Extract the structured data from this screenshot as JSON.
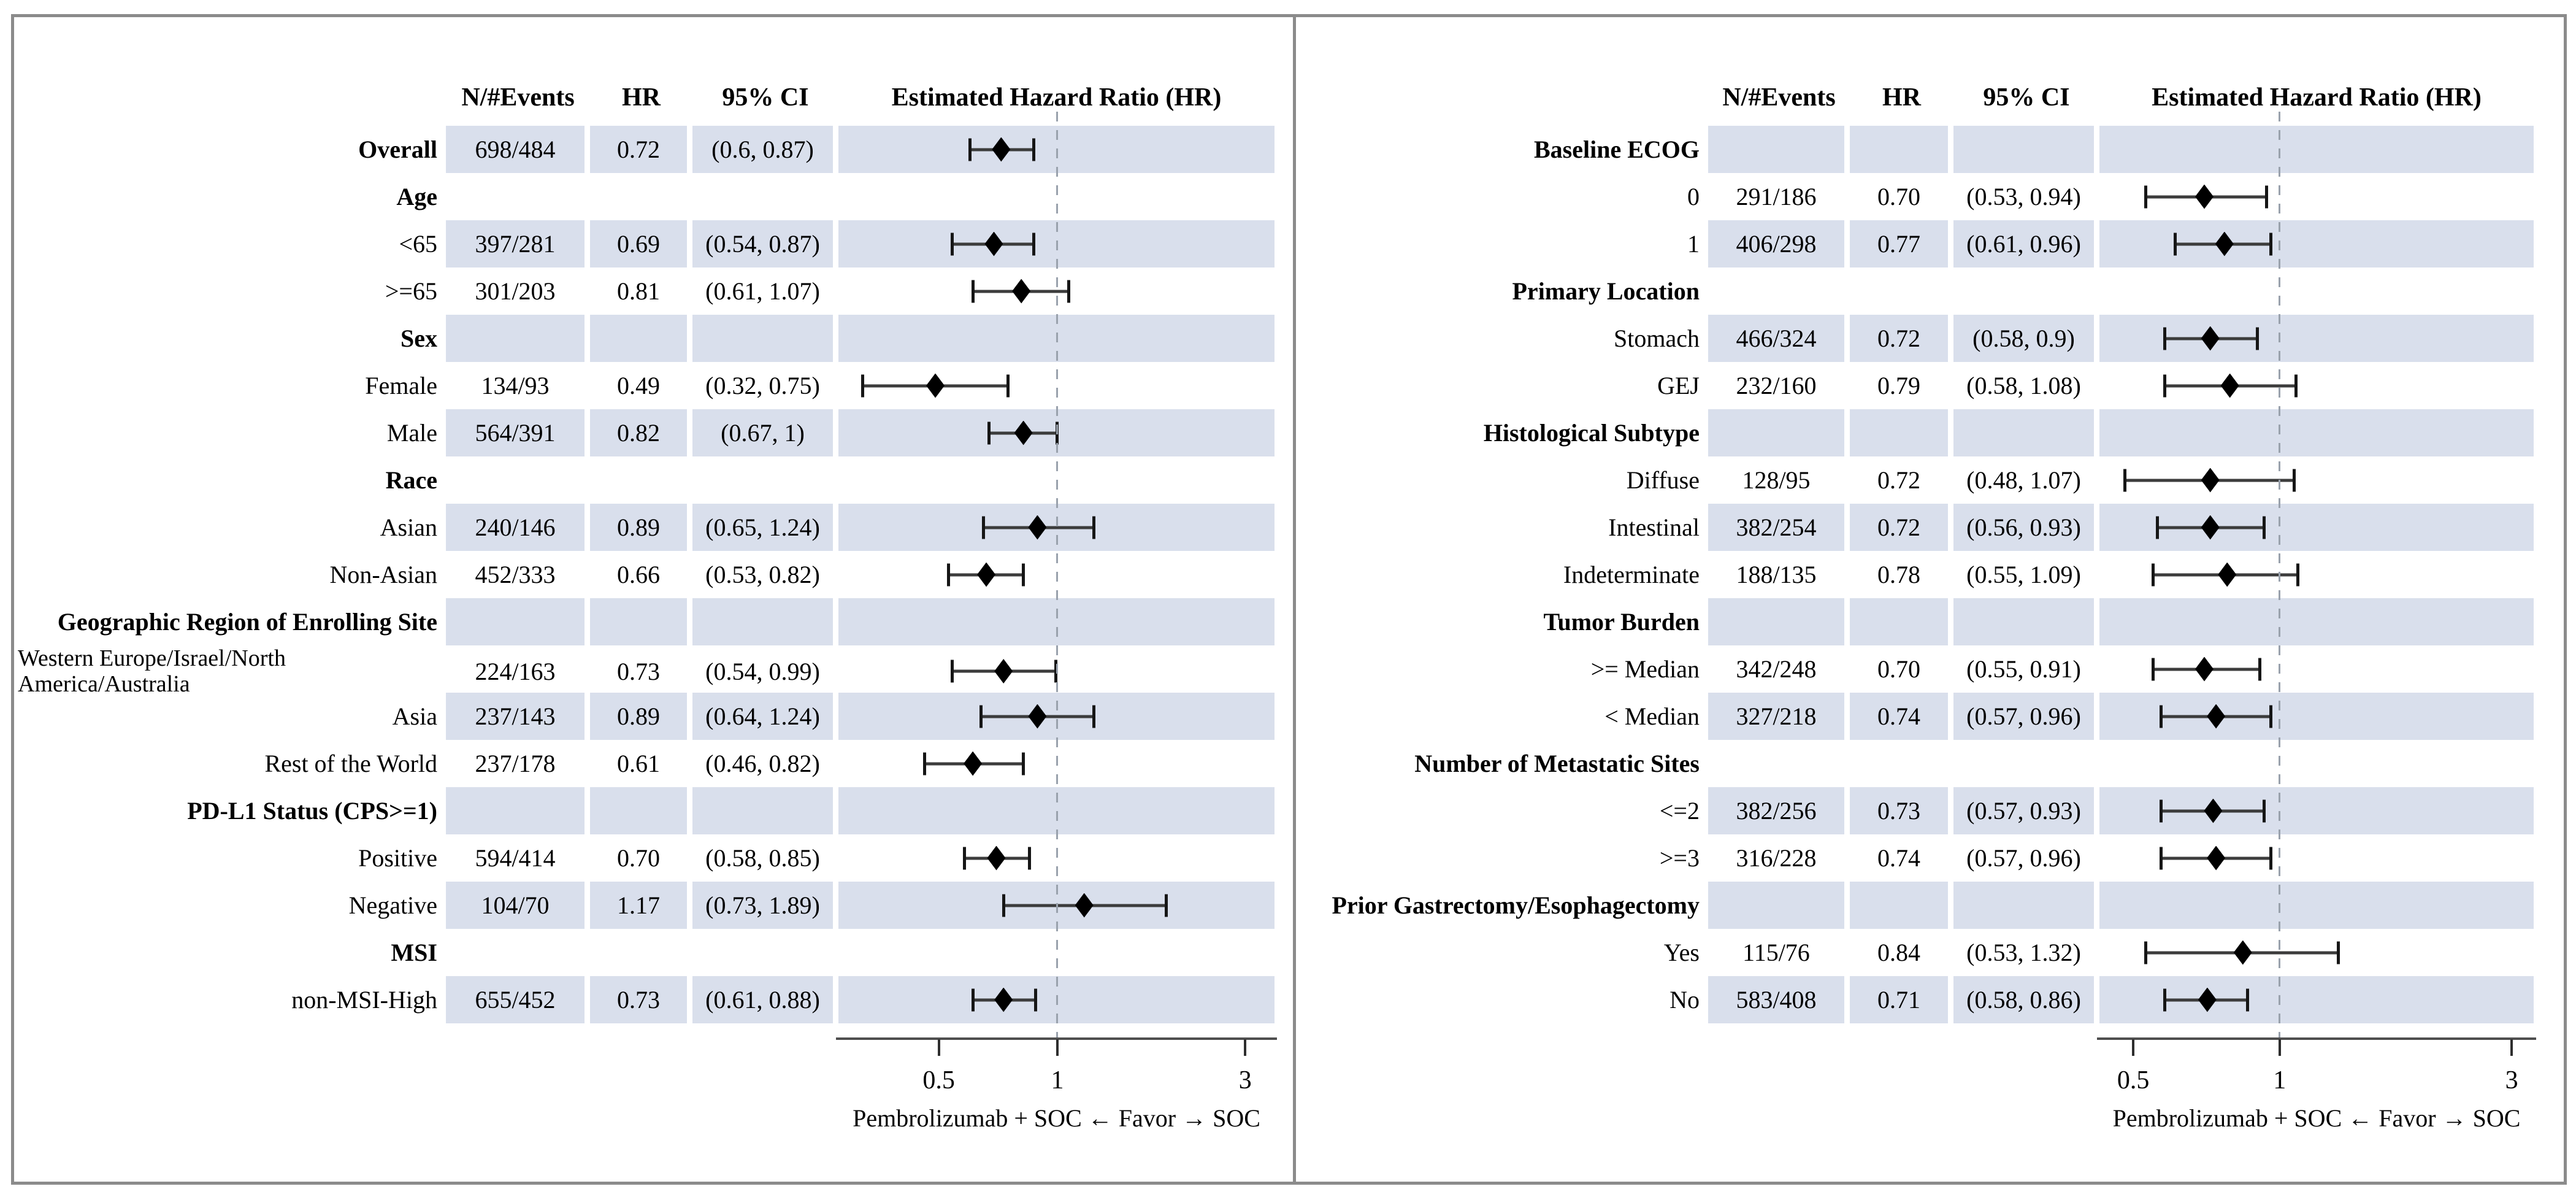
{
  "styles": {
    "band_color": "#d9dfec",
    "border_color": "#8b8b8b",
    "dash_color": "#9aa2ad",
    "marker_color": "#000000",
    "text_color": "#000000"
  },
  "chart_data": [
    {
      "type": "forest",
      "panel": "left",
      "columns": {
        "events": "N/#Events",
        "hr": "HR",
        "ci": "95% CI",
        "plot": "Estimated Hazard Ratio (HR)"
      },
      "axis": {
        "scale": "log",
        "ticks": [
          "0.5",
          "1",
          "3"
        ],
        "tick_values": [
          0.5,
          1,
          3
        ],
        "range": [
          0.278,
          3.56
        ],
        "reference": 1
      },
      "favor_label": "Pembrolizumab + SOC ← Favor → SOC",
      "rows": [
        {
          "label": "Overall",
          "bold": true,
          "n_events": "698/484",
          "hr": "0.72",
          "ci": "(0.6, 0.87)",
          "hr_value": 0.72,
          "ci_low": 0.6,
          "ci_high": 0.87
        },
        {
          "label": "Age",
          "bold": true,
          "group": true
        },
        {
          "label": "<65",
          "n_events": "397/281",
          "hr": "0.69",
          "ci": "(0.54, 0.87)",
          "hr_value": 0.69,
          "ci_low": 0.54,
          "ci_high": 0.87
        },
        {
          "label": ">=65",
          "n_events": "301/203",
          "hr": "0.81",
          "ci": "(0.61, 1.07)",
          "hr_value": 0.81,
          "ci_low": 0.61,
          "ci_high": 1.07
        },
        {
          "label": "Sex",
          "bold": true,
          "group": true
        },
        {
          "label": "Female",
          "n_events": "134/93",
          "hr": "0.49",
          "ci": "(0.32, 0.75)",
          "hr_value": 0.49,
          "ci_low": 0.32,
          "ci_high": 0.75
        },
        {
          "label": "Male",
          "n_events": "564/391",
          "hr": "0.82",
          "ci": "(0.67, 1)",
          "hr_value": 0.82,
          "ci_low": 0.67,
          "ci_high": 1.0
        },
        {
          "label": "Race",
          "bold": true,
          "group": true
        },
        {
          "label": "Asian",
          "n_events": "240/146",
          "hr": "0.89",
          "ci": "(0.65, 1.24)",
          "hr_value": 0.89,
          "ci_low": 0.65,
          "ci_high": 1.24
        },
        {
          "label": "Non-Asian",
          "n_events": "452/333",
          "hr": "0.66",
          "ci": "(0.53, 0.82)",
          "hr_value": 0.66,
          "ci_low": 0.53,
          "ci_high": 0.82
        },
        {
          "label": "Geographic Region of Enrolling Site",
          "bold": true,
          "group": true
        },
        {
          "label": "Western Europe/Israel/North America/Australia",
          "wrap": true,
          "n_events": "224/163",
          "hr": "0.73",
          "ci": "(0.54, 0.99)",
          "hr_value": 0.73,
          "ci_low": 0.54,
          "ci_high": 0.99
        },
        {
          "label": "Asia",
          "n_events": "237/143",
          "hr": "0.89",
          "ci": "(0.64, 1.24)",
          "hr_value": 0.89,
          "ci_low": 0.64,
          "ci_high": 1.24
        },
        {
          "label": "Rest of the World",
          "n_events": "237/178",
          "hr": "0.61",
          "ci": "(0.46, 0.82)",
          "hr_value": 0.61,
          "ci_low": 0.46,
          "ci_high": 0.82
        },
        {
          "label": "PD-L1 Status (CPS>=1)",
          "bold": true,
          "group": true
        },
        {
          "label": "Positive",
          "n_events": "594/414",
          "hr": "0.70",
          "ci": "(0.58, 0.85)",
          "hr_value": 0.7,
          "ci_low": 0.58,
          "ci_high": 0.85
        },
        {
          "label": "Negative",
          "n_events": "104/70",
          "hr": "1.17",
          "ci": "(0.73, 1.89)",
          "hr_value": 1.17,
          "ci_low": 0.73,
          "ci_high": 1.89
        },
        {
          "label": "MSI",
          "bold": true,
          "group": true
        },
        {
          "label": "non-MSI-High",
          "n_events": "655/452",
          "hr": "0.73",
          "ci": "(0.61, 0.88)",
          "hr_value": 0.73,
          "ci_low": 0.61,
          "ci_high": 0.88
        }
      ]
    },
    {
      "type": "forest",
      "panel": "right",
      "columns": {
        "events": "N/#Events",
        "hr": "HR",
        "ci": "95% CI",
        "plot": "Estimated Hazard Ratio (HR)"
      },
      "axis": {
        "scale": "log",
        "ticks": [
          "0.5",
          "1",
          "3"
        ],
        "tick_values": [
          0.5,
          1,
          3
        ],
        "range": [
          0.426,
          3.33
        ],
        "reference": 1
      },
      "favor_label": "Pembrolizumab + SOC ← Favor → SOC",
      "rows": [
        {
          "label": "Baseline ECOG",
          "bold": true,
          "group": true
        },
        {
          "label": "0",
          "n_events": "291/186",
          "hr": "0.70",
          "ci": "(0.53, 0.94)",
          "hr_value": 0.7,
          "ci_low": 0.53,
          "ci_high": 0.94
        },
        {
          "label": "1",
          "n_events": "406/298",
          "hr": "0.77",
          "ci": "(0.61, 0.96)",
          "hr_value": 0.77,
          "ci_low": 0.61,
          "ci_high": 0.96
        },
        {
          "label": "Primary Location",
          "bold": true,
          "group": true
        },
        {
          "label": "Stomach",
          "n_events": "466/324",
          "hr": "0.72",
          "ci": "(0.58, 0.9)",
          "hr_value": 0.72,
          "ci_low": 0.58,
          "ci_high": 0.9
        },
        {
          "label": "GEJ",
          "n_events": "232/160",
          "hr": "0.79",
          "ci": "(0.58, 1.08)",
          "hr_value": 0.79,
          "ci_low": 0.58,
          "ci_high": 1.08
        },
        {
          "label": "Histological Subtype",
          "bold": true,
          "group": true
        },
        {
          "label": "Diffuse",
          "n_events": "128/95",
          "hr": "0.72",
          "ci": "(0.48, 1.07)",
          "hr_value": 0.72,
          "ci_low": 0.48,
          "ci_high": 1.07
        },
        {
          "label": "Intestinal",
          "n_events": "382/254",
          "hr": "0.72",
          "ci": "(0.56, 0.93)",
          "hr_value": 0.72,
          "ci_low": 0.56,
          "ci_high": 0.93
        },
        {
          "label": "Indeterminate",
          "n_events": "188/135",
          "hr": "0.78",
          "ci": "(0.55, 1.09)",
          "hr_value": 0.78,
          "ci_low": 0.55,
          "ci_high": 1.09
        },
        {
          "label": "Tumor Burden",
          "bold": true,
          "group": true
        },
        {
          "label": ">= Median",
          "n_events": "342/248",
          "hr": "0.70",
          "ci": "(0.55, 0.91)",
          "hr_value": 0.7,
          "ci_low": 0.55,
          "ci_high": 0.91
        },
        {
          "label": "< Median",
          "n_events": "327/218",
          "hr": "0.74",
          "ci": "(0.57, 0.96)",
          "hr_value": 0.74,
          "ci_low": 0.57,
          "ci_high": 0.96
        },
        {
          "label": "Number of Metastatic Sites",
          "bold": true,
          "group": true
        },
        {
          "label": "<=2",
          "n_events": "382/256",
          "hr": "0.73",
          "ci": "(0.57, 0.93)",
          "hr_value": 0.73,
          "ci_low": 0.57,
          "ci_high": 0.93
        },
        {
          "label": ">=3",
          "n_events": "316/228",
          "hr": "0.74",
          "ci": "(0.57, 0.96)",
          "hr_value": 0.74,
          "ci_low": 0.57,
          "ci_high": 0.96
        },
        {
          "label": "Prior Gastrectomy/Esophagectomy",
          "bold": true,
          "group": true
        },
        {
          "label": "Yes",
          "n_events": "115/76",
          "hr": "0.84",
          "ci": "(0.53, 1.32)",
          "hr_value": 0.84,
          "ci_low": 0.53,
          "ci_high": 1.32
        },
        {
          "label": "No",
          "n_events": "583/408",
          "hr": "0.71",
          "ci": "(0.58, 0.86)",
          "hr_value": 0.71,
          "ci_low": 0.58,
          "ci_high": 0.86
        }
      ]
    }
  ]
}
